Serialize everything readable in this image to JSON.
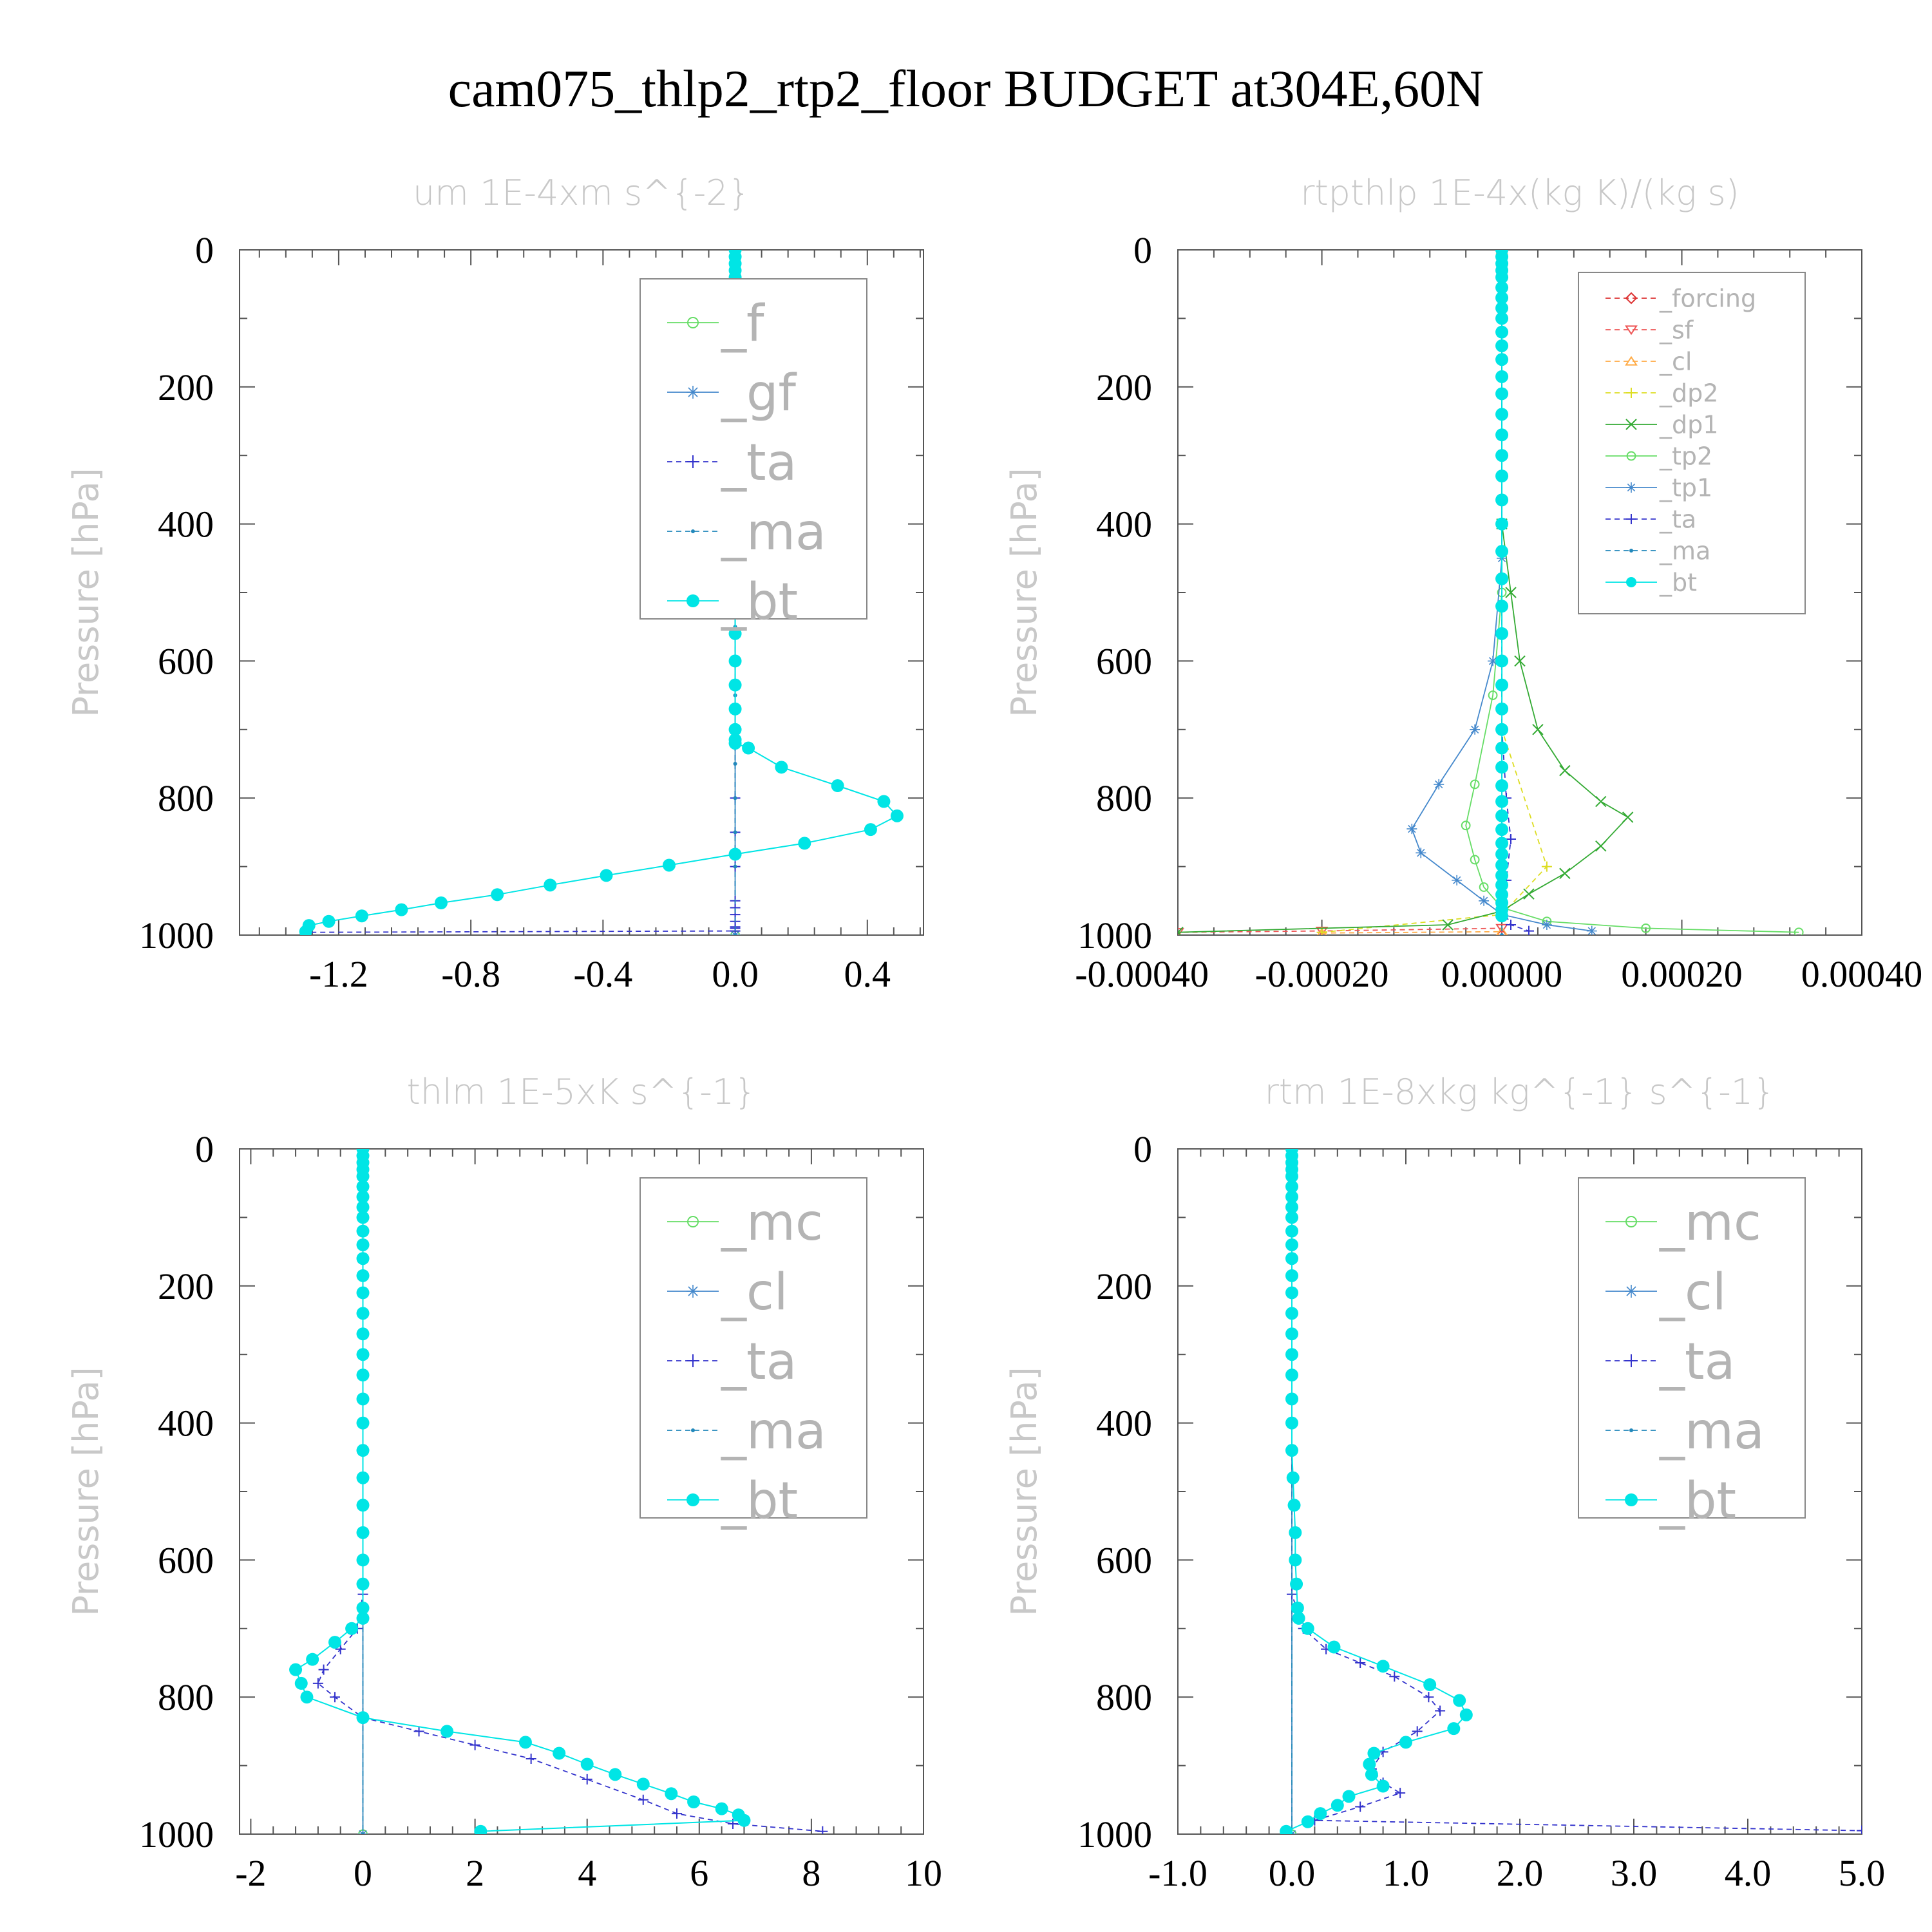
{
  "figure_title": "cam075_thlp2_rtp2_floor  BUDGET at304E,60N",
  "chart_data": [
    {
      "id": "um",
      "type": "line",
      "title": "um  1E-4xm s^{-2}",
      "xlabel": "",
      "ylabel": "Pressure [hPa]",
      "xlim": [
        -1.5,
        0.57
      ],
      "ylim": [
        1000,
        0
      ],
      "xticks": [
        "-1.2",
        "-0.8",
        "-0.4",
        "0.0",
        "0.4"
      ],
      "xtick_values": [
        -1.2,
        -0.8,
        -0.4,
        0.0,
        0.4
      ],
      "yticks": [
        "0",
        "200",
        "400",
        "600",
        "800",
        "1000"
      ],
      "ytick_values": [
        0,
        200,
        400,
        600,
        800,
        1000
      ],
      "legend_position": "top-right",
      "legend_size": "large",
      "series": [
        {
          "name": "_f",
          "color": "#66dd66",
          "marker": "circle-open",
          "dash": "none",
          "x": [
            0.0,
            0.0
          ],
          "p": [
            0,
            1000
          ]
        },
        {
          "name": "_gf",
          "color": "#4488cc",
          "marker": "asterisk",
          "dash": "none",
          "x": [
            0.0,
            0.0
          ],
          "p": [
            0,
            1000
          ]
        },
        {
          "name": "_ta",
          "color": "#3333cc",
          "marker": "plus",
          "dash": "dash",
          "x": [
            0,
            0,
            0,
            0,
            0,
            0,
            0,
            0,
            0,
            0,
            0,
            0,
            0,
            0,
            0,
            0,
            0,
            0,
            -1.3
          ],
          "p": [
            0,
            100,
            200,
            300,
            400,
            500,
            600,
            700,
            800,
            850,
            900,
            950,
            960,
            970,
            980,
            988,
            990,
            994,
            996
          ]
        },
        {
          "name": "_ma",
          "color": "#2288bb",
          "marker": "dot",
          "dash": "dash",
          "x": [
            0,
            0,
            0,
            0,
            0,
            0,
            0,
            0,
            0,
            0,
            0,
            0,
            0,
            0,
            0,
            0,
            0,
            0,
            0,
            0
          ],
          "p": [
            0,
            50,
            100,
            150,
            200,
            250,
            300,
            350,
            400,
            450,
            500,
            550,
            600,
            650,
            700,
            750,
            800,
            850,
            900,
            1000
          ]
        },
        {
          "name": "_bt",
          "color": "#00e5e5",
          "marker": "filled-circle",
          "dash": "none",
          "x": [
            0,
            0,
            0,
            0,
            0,
            0,
            0,
            0,
            0,
            0,
            0,
            0,
            0,
            0,
            0,
            0,
            0,
            0,
            0,
            0,
            0,
            0,
            0,
            0,
            0,
            0,
            0,
            0,
            0,
            0,
            0.04,
            0.14,
            0.31,
            0.45,
            0.49,
            0.41,
            0.21,
            0.0,
            -0.2,
            -0.39,
            -0.56,
            -0.72,
            -0.89,
            -1.01,
            -1.13,
            -1.23,
            -1.29,
            -1.3
          ],
          "p": [
            0,
            10,
            20,
            30,
            40,
            55,
            70,
            85,
            100,
            120,
            140,
            160,
            185,
            210,
            240,
            270,
            300,
            330,
            365,
            400,
            440,
            480,
            520,
            560,
            600,
            635,
            670,
            700,
            715,
            720,
            727,
            755,
            782,
            805,
            826,
            846,
            866,
            882,
            898,
            913,
            927,
            941,
            953,
            963,
            972,
            980,
            986,
            995
          ]
        }
      ]
    },
    {
      "id": "rtpthlp",
      "type": "line",
      "title": "rtpthlp  1E-4x(kg K)/(kg s)",
      "xlabel": "",
      "ylabel": "Pressure [hPa]",
      "xlim": [
        -0.00036,
        0.0004
      ],
      "ylim": [
        1000,
        0
      ],
      "xticks": [
        "-0.00040",
        "-0.00020",
        "0.00000",
        "0.00020",
        "0.00040"
      ],
      "xtick_values": [
        -0.0004,
        -0.0002,
        0.0,
        0.0002,
        0.0004
      ],
      "yticks": [
        "0",
        "200",
        "400",
        "600",
        "800",
        "1000"
      ],
      "ytick_values": [
        0,
        200,
        400,
        600,
        800,
        1000
      ],
      "legend_position": "top-right",
      "legend_size": "small",
      "series": [
        {
          "name": "_forcing",
          "color": "#dd3333",
          "marker": "diamond",
          "dash": "dash",
          "x": [
            0.0,
            0.0
          ],
          "p": [
            0,
            1000
          ]
        },
        {
          "name": "_sf",
          "color": "#ee5555",
          "marker": "triangle-down",
          "dash": "dash",
          "x": [
            0.0,
            0.0,
            -0.0002,
            -0.00036
          ],
          "p": [
            0,
            990,
            994,
            996
          ]
        },
        {
          "name": "_cl",
          "color": "#ffaa44",
          "marker": "triangle-up",
          "dash": "dash",
          "x": [
            0.0,
            0.0,
            -0.0002
          ],
          "p": [
            0,
            995,
            997
          ]
        },
        {
          "name": "_dp2",
          "color": "#dddd22",
          "marker": "plus",
          "dash": "dash",
          "x": [
            0.0,
            0.0,
            5e-05,
            0.0,
            -0.0002
          ],
          "p": [
            0,
            700,
            900,
            970,
            996
          ]
        },
        {
          "name": "_dp1",
          "color": "#33aa33",
          "marker": "x",
          "dash": "none",
          "x": [
            0,
            0,
            1e-05,
            2e-05,
            4e-05,
            7e-05,
            0.00011,
            0.00014,
            0.00011,
            7e-05,
            3e-05,
            0.0,
            -6e-05,
            -0.00036
          ],
          "p": [
            0,
            400,
            500,
            600,
            700,
            760,
            805,
            828,
            870,
            910,
            940,
            965,
            985,
            996
          ]
        },
        {
          "name": "_tp2",
          "color": "#66dd66",
          "marker": "circle-open",
          "dash": "none",
          "x": [
            0,
            0,
            -1e-05,
            -3e-05,
            -4e-05,
            -3e-05,
            -2e-05,
            0.0,
            5e-05,
            0.00016,
            0.00033
          ],
          "p": [
            0,
            500,
            650,
            780,
            840,
            890,
            930,
            960,
            980,
            990,
            996
          ]
        },
        {
          "name": "_tp1",
          "color": "#4488cc",
          "marker": "asterisk",
          "dash": "none",
          "x": [
            0,
            0,
            -1e-05,
            -3e-05,
            -7e-05,
            -0.0001,
            -9e-05,
            -5e-05,
            -2e-05,
            0.0,
            5e-05,
            0.0001
          ],
          "p": [
            0,
            450,
            600,
            700,
            780,
            845,
            880,
            920,
            950,
            970,
            985,
            994
          ]
        },
        {
          "name": "_ta",
          "color": "#3333cc",
          "marker": "plus",
          "dash": "dash",
          "x": [
            0,
            0,
            5e-06,
            1e-05,
            5e-06,
            0,
            1e-05,
            3e-05
          ],
          "p": [
            0,
            700,
            800,
            860,
            920,
            960,
            985,
            994
          ]
        },
        {
          "name": "_ma",
          "color": "#2288bb",
          "marker": "dot",
          "dash": "dash",
          "x": [
            0.0,
            0.0
          ],
          "p": [
            0,
            1000
          ]
        },
        {
          "name": "_bt",
          "color": "#00e5e5",
          "marker": "filled-circle",
          "dash": "none",
          "x": [
            0,
            0,
            0,
            0,
            0,
            0,
            0,
            0,
            0,
            0,
            0,
            0,
            0,
            0,
            0,
            0,
            0,
            0,
            0,
            0,
            0,
            0,
            0,
            0,
            0,
            0,
            0,
            0,
            0,
            0,
            0,
            0,
            0,
            0,
            0,
            0,
            0,
            0,
            0,
            0,
            0,
            0,
            0
          ],
          "p": [
            0,
            10,
            20,
            30,
            40,
            55,
            70,
            85,
            100,
            120,
            140,
            160,
            185,
            210,
            240,
            270,
            300,
            330,
            365,
            400,
            440,
            480,
            520,
            560,
            600,
            635,
            670,
            700,
            727,
            755,
            782,
            805,
            826,
            846,
            866,
            882,
            898,
            913,
            927,
            941,
            953,
            963,
            972
          ]
        }
      ]
    },
    {
      "id": "thlm",
      "type": "line",
      "title": "thlm  1E-5xK s^{-1}",
      "xlabel": "",
      "ylabel": "Pressure [hPa]",
      "xlim": [
        -2.2,
        10
      ],
      "ylim": [
        1000,
        0
      ],
      "xticks": [
        "-2",
        "0",
        "2",
        "4",
        "6",
        "8",
        "10"
      ],
      "xtick_values": [
        -2,
        0,
        2,
        4,
        6,
        8,
        10
      ],
      "yticks": [
        "0",
        "200",
        "400",
        "600",
        "800",
        "1000"
      ],
      "ytick_values": [
        0,
        200,
        400,
        600,
        800,
        1000
      ],
      "legend_position": "top-right",
      "legend_size": "large",
      "series": [
        {
          "name": "_mc",
          "color": "#66dd66",
          "marker": "circle-open",
          "dash": "none",
          "x": [
            0.0,
            0.0
          ],
          "p": [
            0,
            1000
          ]
        },
        {
          "name": "_cl",
          "color": "#4488cc",
          "marker": "asterisk",
          "dash": "none",
          "x": [
            0.0,
            0.0
          ],
          "p": [
            0,
            1000
          ]
        },
        {
          "name": "_ta",
          "color": "#3333cc",
          "marker": "plus",
          "dash": "dash",
          "x": [
            0,
            0,
            -0.1,
            -0.4,
            -0.7,
            -0.8,
            -0.5,
            0.0,
            1.0,
            2.0,
            3.0,
            4.0,
            5.0,
            5.6,
            6.6,
            8.2
          ],
          "p": [
            0,
            650,
            700,
            730,
            760,
            780,
            800,
            830,
            850,
            870,
            890,
            920,
            950,
            970,
            985,
            996
          ]
        },
        {
          "name": "_ma",
          "color": "#2288bb",
          "marker": "dot",
          "dash": "dash",
          "x": [
            0.0,
            0.0
          ],
          "p": [
            0,
            1000
          ]
        },
        {
          "name": "_bt",
          "color": "#00e5e5",
          "marker": "filled-circle",
          "dash": "none",
          "x": [
            0,
            0,
            0,
            0,
            0,
            0,
            0,
            0,
            0,
            0,
            0,
            0,
            0,
            0,
            0,
            0,
            0,
            0,
            0,
            0,
            0,
            0,
            0,
            0,
            0,
            0,
            0,
            0,
            -0.2,
            -0.5,
            -0.9,
            -1.2,
            -1.1,
            -1.0,
            0.0,
            1.5,
            2.9,
            3.5,
            4.0,
            4.5,
            5.0,
            5.5,
            5.9,
            6.4,
            6.7,
            6.8,
            2.1
          ],
          "p": [
            0,
            10,
            20,
            30,
            40,
            55,
            70,
            85,
            100,
            120,
            140,
            160,
            185,
            210,
            240,
            270,
            300,
            330,
            365,
            400,
            440,
            480,
            520,
            560,
            600,
            635,
            670,
            685,
            700,
            720,
            745,
            760,
            780,
            800,
            830,
            850,
            866,
            882,
            898,
            913,
            927,
            941,
            953,
            963,
            972,
            980,
            996
          ]
        }
      ]
    },
    {
      "id": "rtm",
      "type": "line",
      "title": "rtm  1E-8xkg kg^{-1} s^{-1}",
      "xlabel": "",
      "ylabel": "Pressure [hPa]",
      "xlim": [
        -1.0,
        5.0
      ],
      "ylim": [
        1000,
        0
      ],
      "xticks": [
        "-1.0",
        "0.0",
        "1.0",
        "2.0",
        "3.0",
        "4.0",
        "5.0"
      ],
      "xtick_values": [
        -1.0,
        0.0,
        1.0,
        2.0,
        3.0,
        4.0,
        5.0
      ],
      "yticks": [
        "0",
        "200",
        "400",
        "600",
        "800",
        "1000"
      ],
      "ytick_values": [
        0,
        200,
        400,
        600,
        800,
        1000
      ],
      "legend_position": "top-right",
      "legend_size": "large",
      "series": [
        {
          "name": "_mc",
          "color": "#66dd66",
          "marker": "circle-open",
          "dash": "none",
          "x": [
            0.0,
            0.0
          ],
          "p": [
            0,
            1000
          ]
        },
        {
          "name": "_cl",
          "color": "#4488cc",
          "marker": "asterisk",
          "dash": "none",
          "x": [
            0.0,
            0.0
          ],
          "p": [
            0,
            1000
          ]
        },
        {
          "name": "_ta",
          "color": "#3333cc",
          "marker": "plus",
          "dash": "dash",
          "x": [
            0,
            0,
            0.1,
            0.3,
            0.6,
            0.9,
            1.2,
            1.3,
            1.1,
            0.8,
            0.7,
            0.8,
            0.95,
            0.6,
            0.2,
            5.0
          ],
          "p": [
            0,
            650,
            700,
            730,
            750,
            770,
            800,
            820,
            850,
            880,
            905,
            925,
            940,
            960,
            980,
            995
          ]
        },
        {
          "name": "_ma",
          "color": "#2288bb",
          "marker": "dot",
          "dash": "dash",
          "x": [
            0.0,
            0.0
          ],
          "p": [
            0,
            1000
          ]
        },
        {
          "name": "_bt",
          "color": "#00e5e5",
          "marker": "filled-circle",
          "dash": "none",
          "x": [
            0,
            0,
            0,
            0,
            0,
            0,
            0,
            0,
            0,
            0,
            0,
            0,
            0,
            0,
            0,
            0,
            0,
            0,
            0,
            0,
            0,
            0.01,
            0.02,
            0.03,
            0.03,
            0.04,
            0.05,
            0.06,
            0.14,
            0.37,
            0.8,
            1.21,
            1.47,
            1.53,
            1.42,
            1.0,
            0.72,
            0.68,
            0.7,
            0.8,
            0.5,
            0.4,
            0.25,
            0.14,
            -0.05
          ],
          "p": [
            0,
            10,
            20,
            30,
            40,
            55,
            70,
            85,
            100,
            120,
            140,
            160,
            185,
            210,
            240,
            270,
            300,
            330,
            365,
            400,
            440,
            480,
            520,
            560,
            600,
            635,
            670,
            685,
            700,
            727,
            755,
            782,
            805,
            826,
            846,
            866,
            882,
            898,
            913,
            930,
            945,
            958,
            970,
            982,
            996
          ]
        }
      ]
    }
  ]
}
